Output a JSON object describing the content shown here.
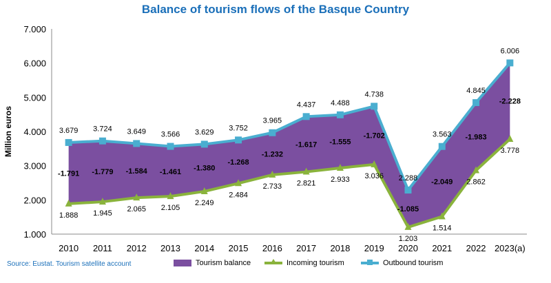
{
  "title": "Balance of tourism flows of the Basque Country",
  "source": "Source: Eustat. Tourism satellite account",
  "colors": {
    "balance_fill": "#7b4fa0",
    "incoming": "#8ab33c",
    "outbound": "#4aaed0",
    "title": "#1a6fb9"
  },
  "chart_data": {
    "type": "area",
    "title": "Balance of tourism flows of the Basque Country",
    "xlabel": "",
    "ylabel": "Million euros",
    "ylim": [
      1000,
      7000
    ],
    "yticks": [
      "1.000",
      "2.000",
      "3.000",
      "4.000",
      "5.000",
      "6.000",
      "7.000"
    ],
    "ytick_values": [
      1000,
      2000,
      3000,
      4000,
      5000,
      6000,
      7000
    ],
    "categories": [
      "2010",
      "2011",
      "2012",
      "2013",
      "2014",
      "2015",
      "2016",
      "2017",
      "2018",
      "2019",
      "2020",
      "2021",
      "2022",
      "2023(a)"
    ],
    "series": [
      {
        "name": "Tourism balance",
        "values": [
          -1791,
          -1779,
          -1584,
          -1461,
          -1380,
          -1268,
          -1232,
          -1617,
          -1555,
          -1702,
          -1085,
          -2049,
          -1983,
          -2228
        ],
        "labels": [
          "-1.791",
          "-1.779",
          "-1.584",
          "-1.461",
          "-1.380",
          "-1.268",
          "-1.232",
          "-1.617",
          "-1.555",
          "-1.702",
          "-1.085",
          "-2.049",
          "-1.983",
          "-2.228"
        ]
      },
      {
        "name": "Incoming tourism",
        "values": [
          1888,
          1945,
          2065,
          2105,
          2249,
          2484,
          2733,
          2821,
          2933,
          3036,
          1203,
          1514,
          2862,
          3778
        ],
        "labels": [
          "1.888",
          "1.945",
          "2.065",
          "2.105",
          "2.249",
          "2.484",
          "2.733",
          "2.821",
          "2.933",
          "3.036",
          "1.203",
          "1.514",
          "2.862",
          "3.778"
        ]
      },
      {
        "name": "Outbound tourism",
        "values": [
          3679,
          3724,
          3649,
          3566,
          3629,
          3752,
          3965,
          4437,
          4488,
          4738,
          2288,
          3563,
          4845,
          6006
        ],
        "labels": [
          "3.679",
          "3.724",
          "3.649",
          "3.566",
          "3.629",
          "3.752",
          "3.965",
          "4.437",
          "4.488",
          "4.738",
          "2.288",
          "3.563",
          "4.845",
          "6.006"
        ]
      }
    ],
    "legend": [
      "Tourism balance",
      "Incoming tourism",
      "Outbound tourism"
    ],
    "legend_position": "bottom",
    "grid": false
  }
}
